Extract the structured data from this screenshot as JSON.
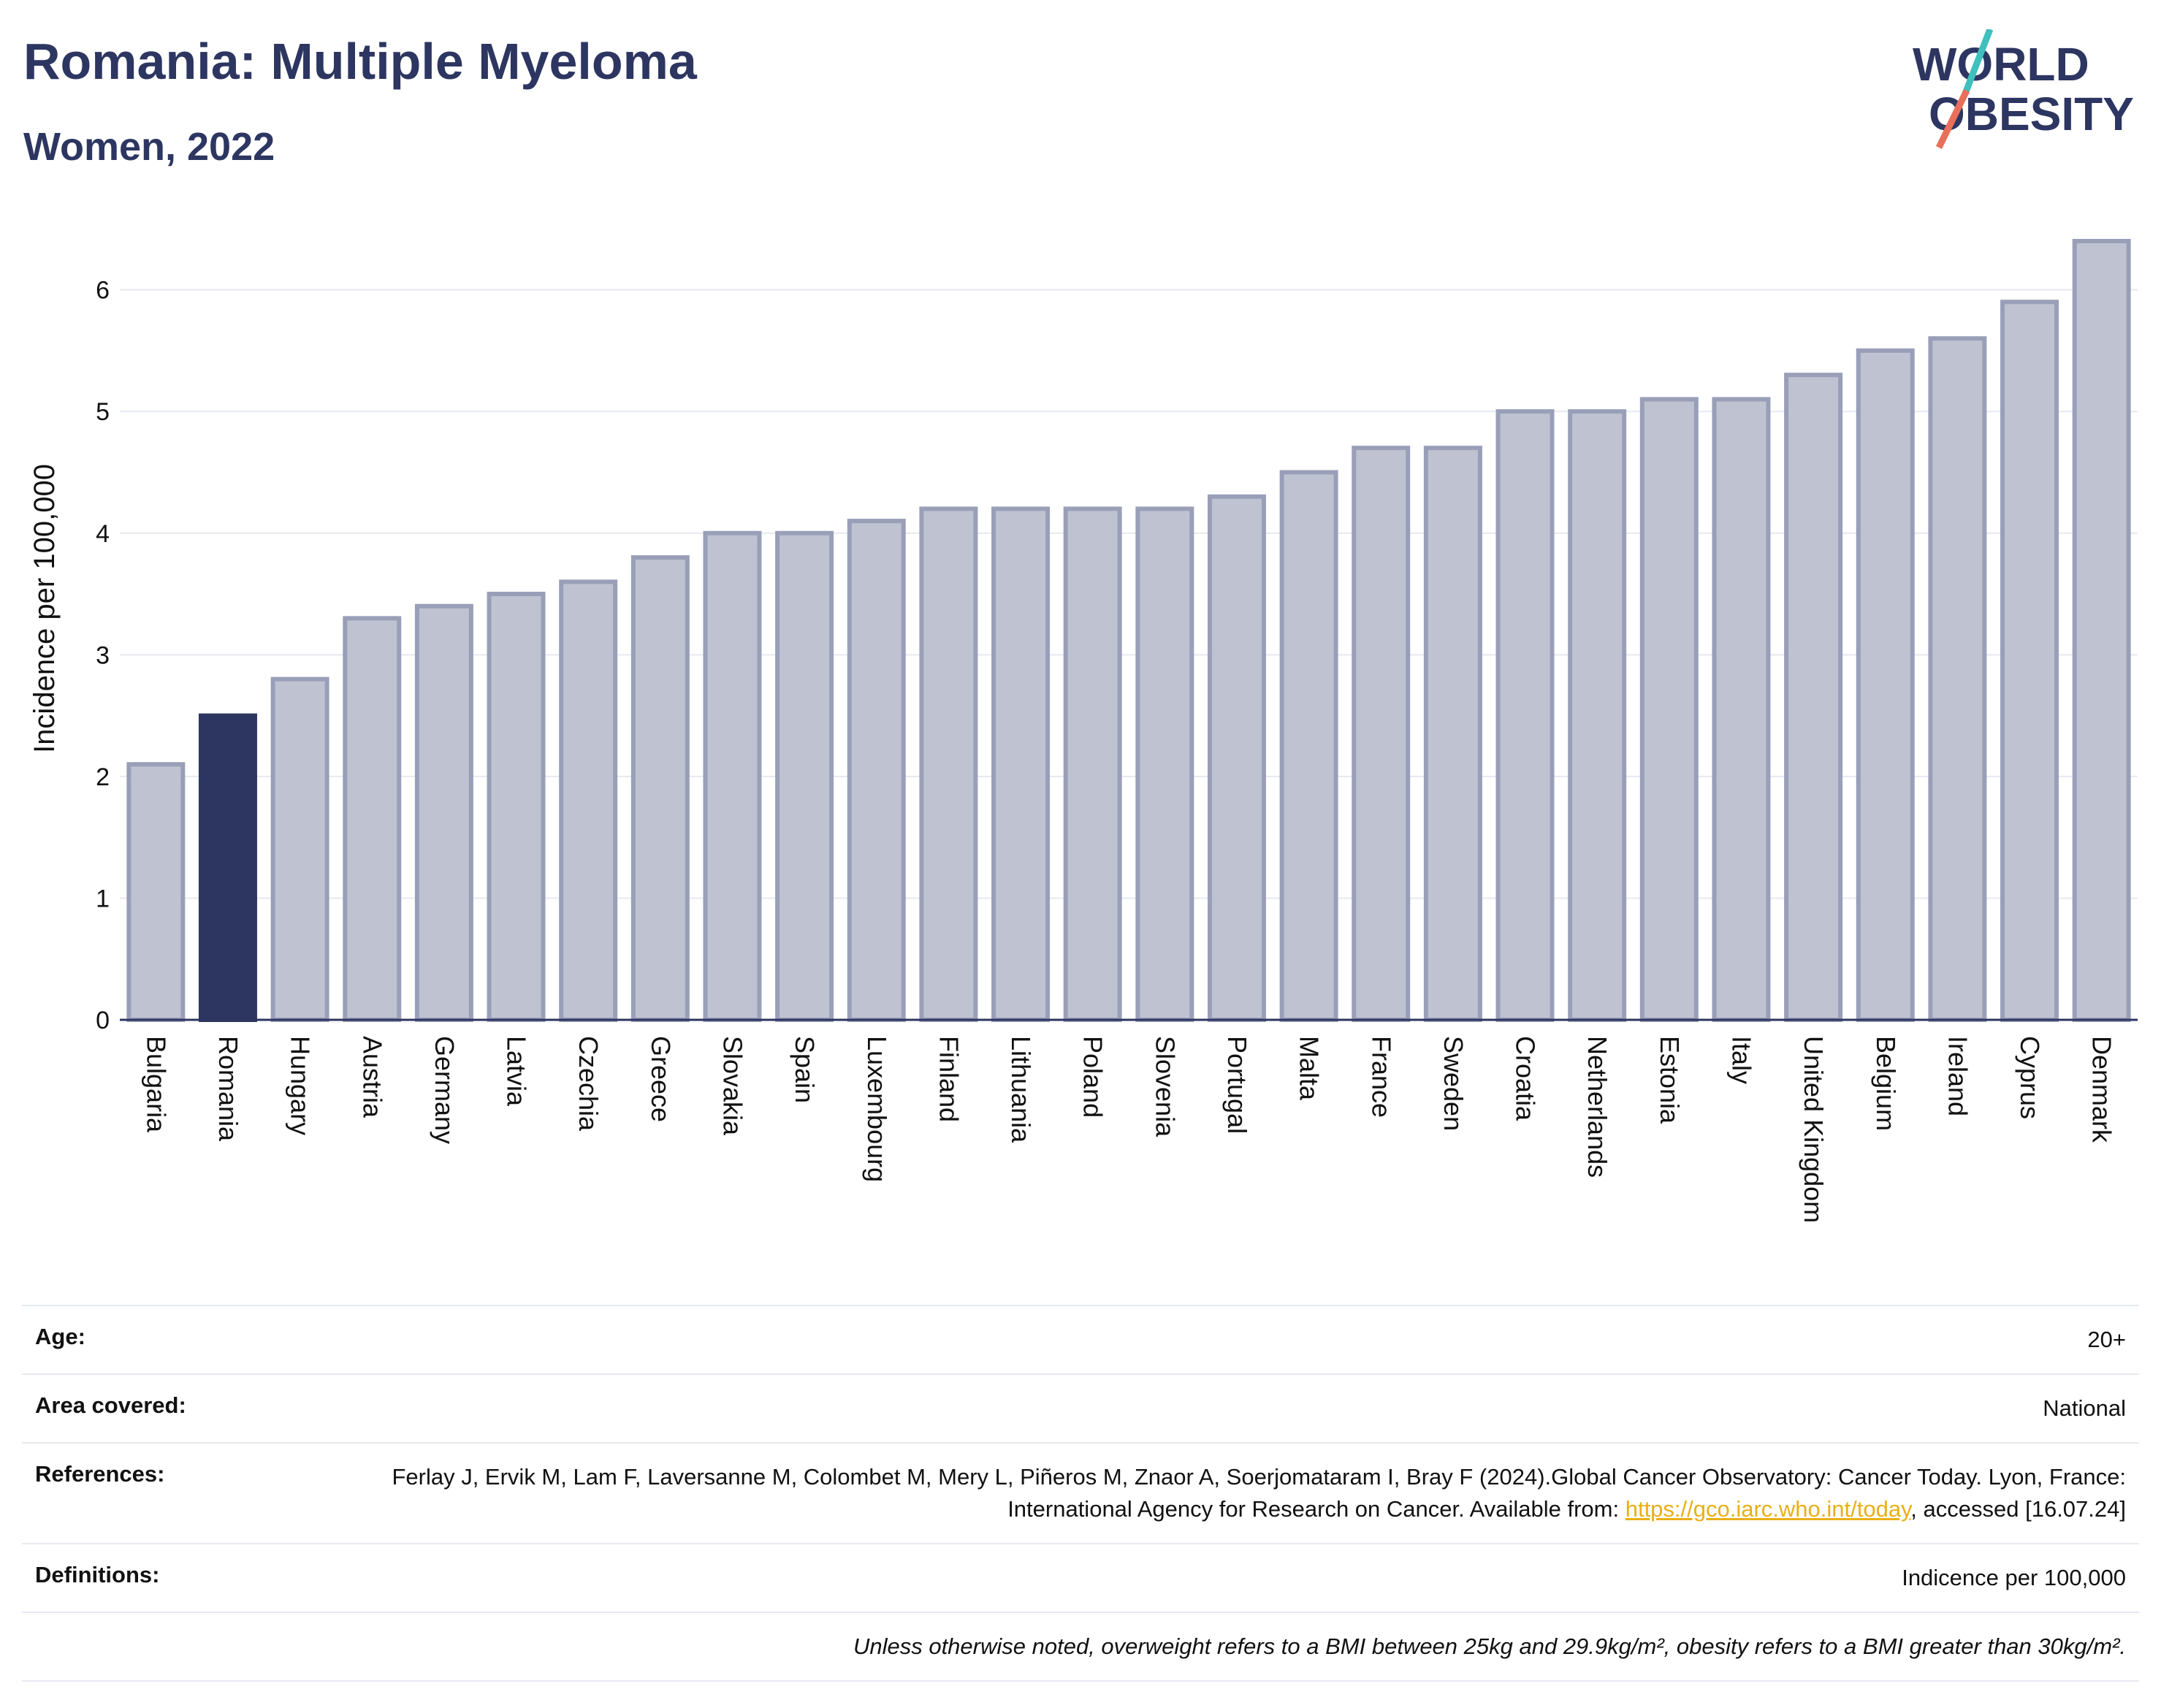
{
  "header": {
    "title": "Romania: Multiple Myeloma",
    "subtitle": "Women, 2022"
  },
  "logo": {
    "line1": "WORLD",
    "line2": "OBESITY",
    "colors": {
      "navy": "#2d3661",
      "teal": "#3fbfbd",
      "coral": "#e8705a"
    }
  },
  "chart_data": {
    "type": "bar",
    "categories": [
      "Bulgaria",
      "Romania",
      "Hungary",
      "Austria",
      "Germany",
      "Latvia",
      "Czechia",
      "Greece",
      "Slovakia",
      "Spain",
      "Luxembourg",
      "Finland",
      "Lithuania",
      "Poland",
      "Slovenia",
      "Portugal",
      "Malta",
      "France",
      "Sweden",
      "Croatia",
      "Netherlands",
      "Estonia",
      "Italy",
      "United Kingdom",
      "Belgium",
      "Ireland",
      "Cyprus",
      "Denmark"
    ],
    "values": [
      2.1,
      2.5,
      2.8,
      3.3,
      3.4,
      3.5,
      3.6,
      3.8,
      4.0,
      4.0,
      4.1,
      4.2,
      4.2,
      4.2,
      4.2,
      4.3,
      4.5,
      4.7,
      4.7,
      5.0,
      5.0,
      5.1,
      5.1,
      5.3,
      5.5,
      5.6,
      5.9,
      6.4
    ],
    "highlight": "Romania",
    "ylabel": "Incidence per 100,000",
    "ylim": [
      0,
      6.4
    ],
    "yticks": [
      0,
      1,
      2,
      3,
      4,
      5,
      6
    ],
    "grid": true,
    "colors": {
      "bar": "#bfc2d0",
      "bar_stroke": "#9a9fb8",
      "highlight": "#2d3661",
      "grid": "#e6e9ef",
      "axis": "#2d3661"
    }
  },
  "info": {
    "age_label": "Age:",
    "age_value": "20+",
    "area_label": "Area covered:",
    "area_value": "National",
    "ref_label": "References:",
    "ref_text": "Ferlay J, Ervik M, Lam F, Laversanne M, Colombet M, Mery L, Piñeros M, Znaor A, Soerjomataram I, Bray F (2024).Global Cancer Observatory: Cancer Today. Lyon, France: International Agency for Research on Cancer. Available from: ",
    "ref_link": "https://gco.iarc.who.int/today",
    "ref_tail": ", accessed [16.07.24]",
    "def_label": "Definitions:",
    "def_value": "Indicence per 100,000",
    "note": "Unless otherwise noted, overweight refers to a BMI between 25kg and 29.9kg/m², obesity refers to a BMI greater than 30kg/m²."
  }
}
